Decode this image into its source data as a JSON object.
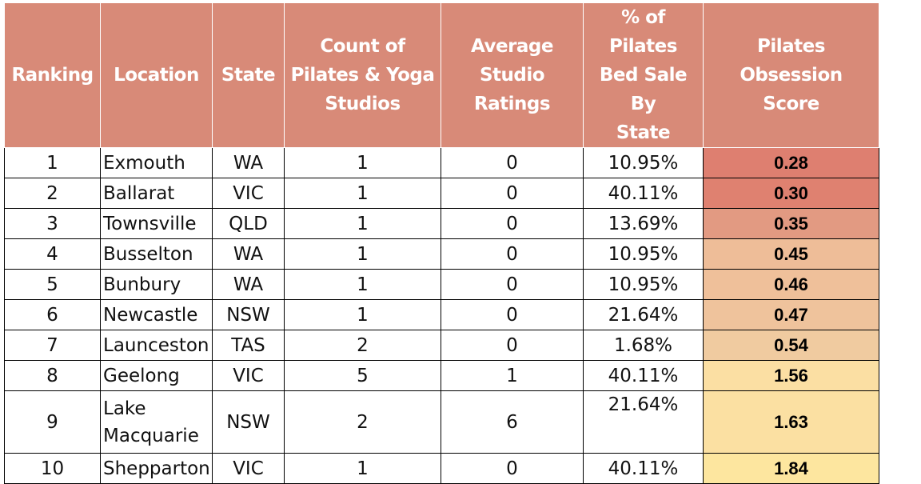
{
  "chart_data": {
    "type": "table",
    "columns": [
      "Ranking",
      "Location",
      "State",
      "Count of Pilates & Yoga Studios",
      "Average Studio Ratings",
      "% of Pilates Bed Sale By State",
      "Pilates Obsession Score"
    ],
    "rows": [
      {
        "ranking": "1",
        "location": "Exmouth",
        "state": "WA",
        "count": "1",
        "rating": "0",
        "pct": "10.95%",
        "score": "0.28",
        "score_color": "#de7f70"
      },
      {
        "ranking": "2",
        "location": "Ballarat",
        "state": "VIC",
        "count": "1",
        "rating": "0",
        "pct": "40.11%",
        "score": "0.30",
        "score_color": "#df8170"
      },
      {
        "ranking": "3",
        "location": "Townsville",
        "state": "QLD",
        "count": "1",
        "rating": "0",
        "pct": "13.69%",
        "score": "0.35",
        "score_color": "#e29a82"
      },
      {
        "ranking": "4",
        "location": "Busselton",
        "state": "WA",
        "count": "1",
        "rating": "0",
        "pct": "10.95%",
        "score": "0.45",
        "score_color": "#eebd98"
      },
      {
        "ranking": "5",
        "location": "Bunbury",
        "state": "WA",
        "count": "1",
        "rating": "0",
        "pct": "10.95%",
        "score": "0.46",
        "score_color": "#efc09a"
      },
      {
        "ranking": "6",
        "location": "Newcastle",
        "state": "NSW",
        "count": "1",
        "rating": "0",
        "pct": "21.64%",
        "score": "0.47",
        "score_color": "#efc39c"
      },
      {
        "ranking": "7",
        "location": "Launceston",
        "state": "TAS",
        "count": "2",
        "rating": "0",
        "pct": "1.68%",
        "score": "0.54",
        "score_color": "#f0cba0"
      },
      {
        "ranking": "8",
        "location": "Geelong",
        "state": "VIC",
        "count": "5",
        "rating": "1",
        "pct": "40.11%",
        "score": "1.56",
        "score_color": "#fbdfa3"
      },
      {
        "ranking": "9",
        "location": "Lake Macquarie",
        "location_lines": [
          "Lake",
          "Macquarie"
        ],
        "state": "NSW",
        "count": "2",
        "rating": "6",
        "pct": "21.64%",
        "score": "1.63",
        "score_color": "#fbe0a2"
      },
      {
        "ranking": "10",
        "location": "Shepparton",
        "state": "VIC",
        "count": "1",
        "rating": "0",
        "pct": "40.11%",
        "score": "1.84",
        "score_color": "#fde69f"
      }
    ]
  },
  "header_lines": {
    "ranking": [
      "Ranking"
    ],
    "location": [
      "Location"
    ],
    "state": [
      "State"
    ],
    "count": [
      "Count of",
      "Pilates & Yoga",
      "Studios"
    ],
    "rating": [
      "Average",
      "Studio Ratings"
    ],
    "pct": [
      "% of Pilates",
      "Bed Sale By",
      "State"
    ],
    "score": [
      "Pilates Obsession",
      "Score"
    ]
  },
  "colors": {
    "header_bg": "#d88a78",
    "header_text": "#ffffff",
    "score_low": "#de7f70",
    "score_high": "#fde69f"
  }
}
